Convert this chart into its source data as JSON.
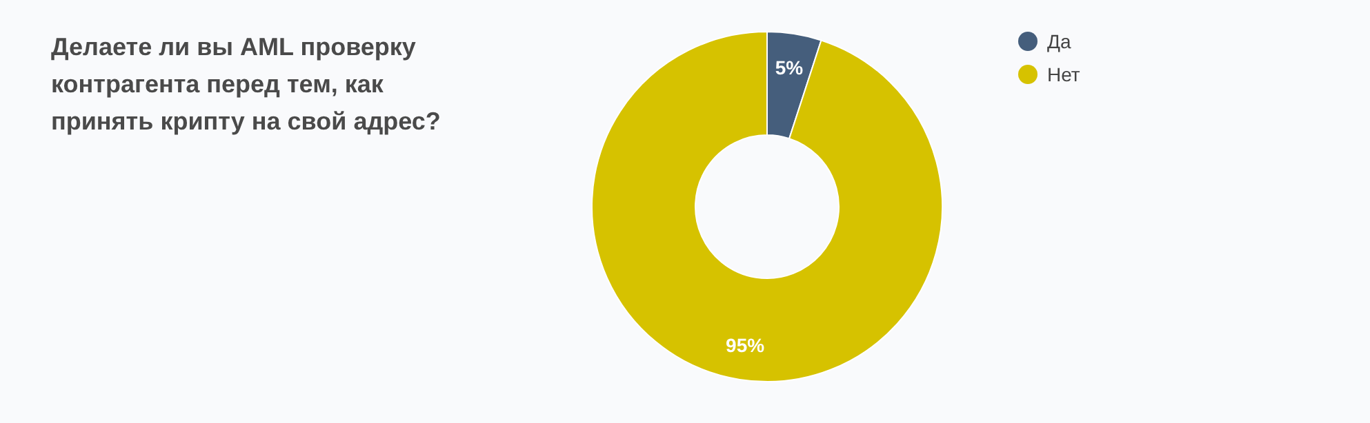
{
  "chart_data": {
    "type": "donut",
    "title": "Делаете ли вы AML проверку контрагента перед тем, как принять крипту на свой адрес?",
    "categories": [
      "Да",
      "Нет"
    ],
    "values": [
      5,
      95
    ],
    "colors": [
      "#455e7c",
      "#d6c200"
    ],
    "value_labels": [
      "5%",
      "95%"
    ],
    "legend": "top right"
  }
}
